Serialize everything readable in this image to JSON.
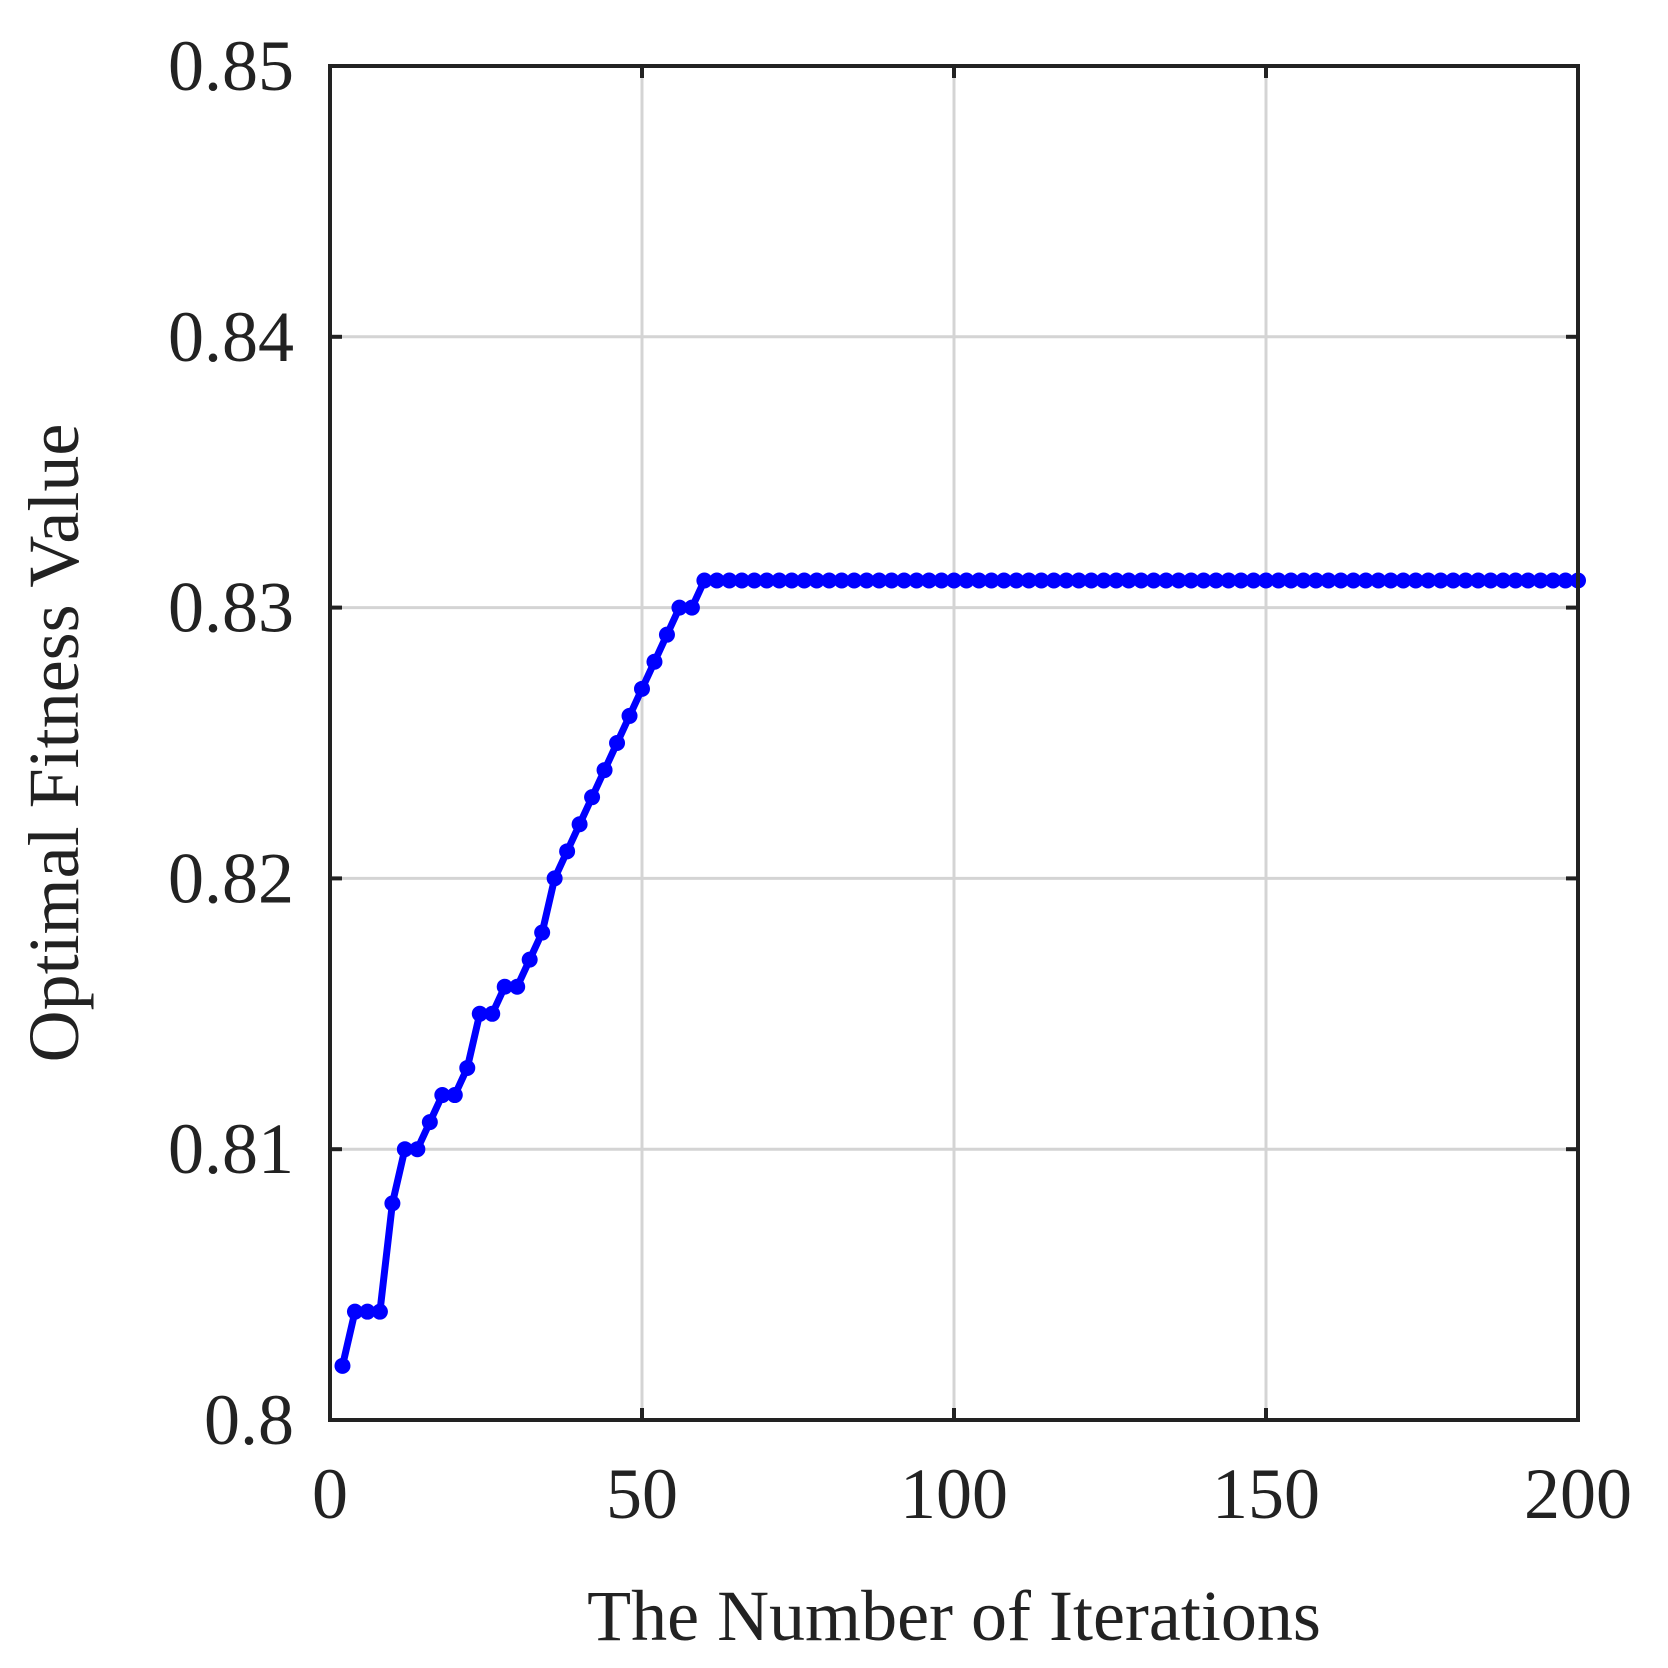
{
  "chart_data": {
    "type": "line",
    "title": "",
    "xlabel": "The Number of Iterations",
    "ylabel": "Optimal Fitness Value",
    "xlim": [
      0,
      200
    ],
    "ylim": [
      0.8,
      0.85
    ],
    "xticks": [
      0,
      50,
      100,
      150,
      200
    ],
    "yticks": [
      0.8,
      0.81,
      0.82,
      0.83,
      0.84,
      0.85
    ],
    "xtick_labels": [
      "0",
      "50",
      "100",
      "150",
      "200"
    ],
    "ytick_labels": [
      "0.8",
      "0.81",
      "0.82",
      "0.83",
      "0.84",
      "0.85"
    ],
    "grid": true,
    "series": [
      {
        "color": "#0000ff",
        "marker": "dot",
        "points": [
          [
            2,
            0.802
          ],
          [
            4,
            0.804
          ],
          [
            6,
            0.804
          ],
          [
            8,
            0.804
          ],
          [
            10,
            0.808
          ],
          [
            12,
            0.81
          ],
          [
            14,
            0.81
          ],
          [
            16,
            0.811
          ],
          [
            18,
            0.812
          ],
          [
            20,
            0.812
          ],
          [
            22,
            0.813
          ],
          [
            24,
            0.815
          ],
          [
            26,
            0.815
          ],
          [
            28,
            0.816
          ],
          [
            30,
            0.816
          ],
          [
            32,
            0.817
          ],
          [
            34,
            0.818
          ],
          [
            36,
            0.82
          ],
          [
            38,
            0.821
          ],
          [
            40,
            0.822
          ],
          [
            42,
            0.823
          ],
          [
            44,
            0.824
          ],
          [
            46,
            0.825
          ],
          [
            48,
            0.826
          ],
          [
            50,
            0.827
          ],
          [
            52,
            0.828
          ],
          [
            54,
            0.829
          ],
          [
            56,
            0.83
          ],
          [
            58,
            0.83
          ],
          [
            60,
            0.831
          ],
          [
            62,
            0.831
          ],
          [
            64,
            0.831
          ],
          [
            66,
            0.831
          ],
          [
            68,
            0.831
          ],
          [
            70,
            0.831
          ],
          [
            72,
            0.831
          ],
          [
            74,
            0.831
          ],
          [
            76,
            0.831
          ],
          [
            78,
            0.831
          ],
          [
            80,
            0.831
          ],
          [
            82,
            0.831
          ],
          [
            84,
            0.831
          ],
          [
            86,
            0.831
          ],
          [
            88,
            0.831
          ],
          [
            90,
            0.831
          ],
          [
            92,
            0.831
          ],
          [
            94,
            0.831
          ],
          [
            96,
            0.831
          ],
          [
            98,
            0.831
          ],
          [
            100,
            0.831
          ],
          [
            102,
            0.831
          ],
          [
            104,
            0.831
          ],
          [
            106,
            0.831
          ],
          [
            108,
            0.831
          ],
          [
            110,
            0.831
          ],
          [
            112,
            0.831
          ],
          [
            114,
            0.831
          ],
          [
            116,
            0.831
          ],
          [
            118,
            0.831
          ],
          [
            120,
            0.831
          ],
          [
            122,
            0.831
          ],
          [
            124,
            0.831
          ],
          [
            126,
            0.831
          ],
          [
            128,
            0.831
          ],
          [
            130,
            0.831
          ],
          [
            132,
            0.831
          ],
          [
            134,
            0.831
          ],
          [
            136,
            0.831
          ],
          [
            138,
            0.831
          ],
          [
            140,
            0.831
          ],
          [
            142,
            0.831
          ],
          [
            144,
            0.831
          ],
          [
            146,
            0.831
          ],
          [
            148,
            0.831
          ],
          [
            150,
            0.831
          ],
          [
            152,
            0.831
          ],
          [
            154,
            0.831
          ],
          [
            156,
            0.831
          ],
          [
            158,
            0.831
          ],
          [
            160,
            0.831
          ],
          [
            162,
            0.831
          ],
          [
            164,
            0.831
          ],
          [
            166,
            0.831
          ],
          [
            168,
            0.831
          ],
          [
            170,
            0.831
          ],
          [
            172,
            0.831
          ],
          [
            174,
            0.831
          ],
          [
            176,
            0.831
          ],
          [
            178,
            0.831
          ],
          [
            180,
            0.831
          ],
          [
            182,
            0.831
          ],
          [
            184,
            0.831
          ],
          [
            186,
            0.831
          ],
          [
            188,
            0.831
          ],
          [
            190,
            0.831
          ],
          [
            192,
            0.831
          ],
          [
            194,
            0.831
          ],
          [
            196,
            0.831
          ],
          [
            198,
            0.831
          ],
          [
            200,
            0.831
          ]
        ]
      }
    ]
  }
}
